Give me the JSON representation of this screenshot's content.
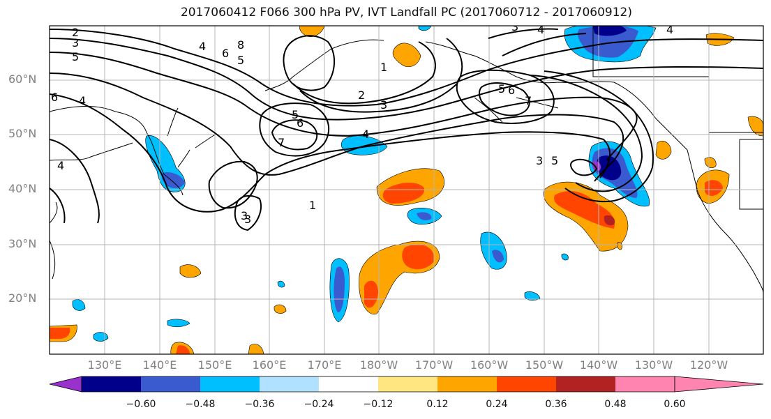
{
  "title": "2017060412 F066 300 hPa PV, IVT Landfall PC (2017060712 - 2017060912)",
  "lat_labels": [
    "60°N",
    "50°N",
    "40°N",
    "30°N",
    "20°N"
  ],
  "lon_labels": [
    "130°E",
    "140°E",
    "150°E",
    "160°E",
    "170°E",
    "180°W",
    "170°W",
    "160°W",
    "150°W",
    "140°W",
    "130°W",
    "120°W"
  ],
  "colorbar": {
    "ticks": [
      "−0.60",
      "−0.48",
      "−0.36",
      "−0.24",
      "−0.12",
      "0.12",
      "0.24",
      "0.36",
      "0.48",
      "0.60"
    ],
    "colors": [
      "#9932cc",
      "#00008b",
      "#3a5bd0",
      "#00bfff",
      "#b0e2ff",
      "#ffffff",
      "#ffe680",
      "#ffa500",
      "#ff4500",
      "#b22222",
      "#ff85b0"
    ]
  },
  "contour_labels": [
    "2",
    "3",
    "5",
    "6",
    "4",
    "4",
    "6",
    "8",
    "5",
    "1",
    "2",
    "3",
    "5",
    "6",
    "7",
    "4",
    "3",
    "1",
    "3",
    "5",
    "6",
    "7",
    "4",
    "3",
    "5",
    "4",
    "4",
    "3",
    "6",
    "4"
  ]
}
